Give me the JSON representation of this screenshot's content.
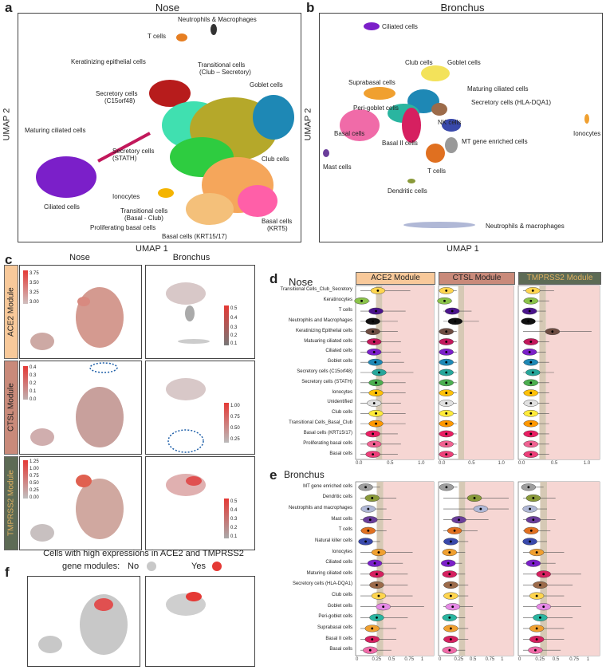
{
  "panels": {
    "a": {
      "letter": "a",
      "title": "Nose",
      "xlabel": "UMAP 1",
      "ylabel": "UMAP 2",
      "labels": [
        "Neutrophils & Macrophages",
        "T cells",
        "Keratinizing epithelial cells",
        "Transitional cells",
        "(Club – Secretory)",
        "Secretory cells",
        "(C15orf48)",
        "Goblet cells",
        "Maturing ciliated cells",
        "Secretory cells",
        "(STATH)",
        "Club cells",
        "Ciliated cells",
        "Ionocytes",
        "Transitional cells",
        "(Basal - Club)",
        "Proliferating basal cells",
        "Basal cells (KRT15/17)",
        "Basal cells",
        "(KRT5)"
      ]
    },
    "b": {
      "letter": "b",
      "title": "Bronchus",
      "xlabel": "UMAP 1",
      "ylabel": "UMAP 2",
      "labels": [
        "Ciliated cells",
        "Club cells",
        "Goblet cells",
        "Suprabasal cells",
        "Maturing ciliated cells",
        "Peri-goblet cells",
        "Secretory cells (HLA-DQA1)",
        "Basal cells",
        "NK cells",
        "Ionocytes",
        "Basal II cells",
        "MT gene enriched cells",
        "Mast cells",
        "T cells",
        "Dendritic cells",
        "Neutrophils & macrophages"
      ]
    },
    "c": {
      "letter": "c",
      "col_nose": "Nose",
      "col_bronchus": "Bronchus",
      "rows": [
        "ACE2 Module",
        "CTSL Module",
        "TMPRSS2 Module"
      ],
      "legend_nose": [
        [
          "3.75",
          "3.50",
          "3.25",
          "3.00"
        ],
        [
          "0.4",
          "0.3",
          "0.2",
          "0.1",
          "0.0"
        ],
        [
          "1.25",
          "1.00",
          "0.75",
          "0.50",
          "0.25",
          "0.00"
        ]
      ],
      "legend_bronchus": [
        [
          "0.5",
          "0.4",
          "0.3",
          "0.2",
          "0.1"
        ],
        [
          "1.00",
          "0.75",
          "0.50",
          "0.25"
        ],
        [
          "0.5",
          "0.4",
          "0.3",
          "0.2",
          "0.1"
        ]
      ]
    },
    "d": {
      "letter": "d",
      "tissue": "Nose",
      "modules": [
        "ACE2 Module",
        "CTSL Module",
        "TMPRSS2 Module"
      ]
    },
    "e": {
      "letter": "e",
      "tissue": "Bronchus"
    },
    "f": {
      "letter": "f",
      "title_line1": "Cells with high expressions in ACE2 and TMPRSS2",
      "title_line2": "gene modules:",
      "no": "No",
      "yes": "Yes"
    }
  },
  "chart_data": [
    {
      "type": "violin",
      "title": "Nose",
      "categories": [
        "Transitional Cells_Club_Secretory",
        "Keratinocytes",
        "T cells",
        "Neutrophils and Macrophages",
        "Keratinizing Epithelial cells",
        "Matuaring ciliated cells",
        "Ciliated cells",
        "Goblet cells",
        "Secretory cells (C15orf48)",
        "Secretory cells (STATH)",
        "Ionocytes",
        "Unidentified",
        "Club cells",
        "Transitional Cells_Basal_Club",
        "Basal cells (KRT15/17)",
        "Proliferating basal cells",
        "Basal cells"
      ],
      "series": [
        {
          "name": "ACE2 Module",
          "medians": [
            0.28,
            0.02,
            0.25,
            0.2,
            0.2,
            0.22,
            0.22,
            0.24,
            0.3,
            0.25,
            0.25,
            0.22,
            0.25,
            0.25,
            0.2,
            0.22,
            0.2
          ]
        },
        {
          "name": "CTSL Module",
          "medians": [
            0.05,
            0.02,
            0.15,
            0.2,
            0.05,
            0.05,
            0.05,
            0.05,
            0.05,
            0.05,
            0.05,
            0.05,
            0.05,
            0.05,
            0.05,
            0.05,
            0.05
          ]
        },
        {
          "name": "TMPRSS2 Module",
          "medians": [
            0.15,
            0.12,
            0.1,
            0.08,
            0.45,
            0.12,
            0.1,
            0.12,
            0.15,
            0.12,
            0.12,
            0.12,
            0.12,
            0.12,
            0.12,
            0.12,
            0.12
          ]
        }
      ],
      "xticks": [
        "0.0",
        "0.5",
        "1.0"
      ]
    },
    {
      "type": "violin",
      "title": "Bronchus",
      "categories": [
        "MT gene enriched cells",
        "Dendritic cells",
        "Neutrophils and macrophages",
        "Mast cells",
        "T cells",
        "Natural killer cells",
        "Ionocytes",
        "Ciliated cells",
        "Maturing ciliated cells",
        "Secretory cells (HLA-DQA1)",
        "Club cells",
        "Goblet cells",
        "Peri-goblet cells",
        "Suprabasal cells",
        "Basal II cells",
        "Basal cells"
      ],
      "series": [
        {
          "medians": [
            0.08,
            0.18,
            0.12,
            0.15,
            0.12,
            0.08,
            0.28,
            0.22,
            0.25,
            0.25,
            0.28,
            0.35,
            0.25,
            0.18,
            0.18,
            0.15
          ]
        },
        {
          "medians": [
            0.05,
            0.5,
            0.6,
            0.25,
            0.18,
            0.12,
            0.1,
            0.08,
            0.1,
            0.12,
            0.12,
            0.15,
            0.1,
            0.12,
            0.12,
            0.1
          ]
        },
        {
          "medians": [
            0.08,
            0.15,
            0.1,
            0.15,
            0.12,
            0.1,
            0.2,
            0.15,
            0.3,
            0.25,
            0.2,
            0.3,
            0.25,
            0.2,
            0.2,
            0.18
          ]
        }
      ],
      "xticks": [
        "0",
        "0.25",
        "0.5",
        "0.75",
        "1"
      ]
    }
  ],
  "colors": {
    "ace2_bg": "#f8c99a",
    "ctsl_bg": "#c98a7a",
    "tmprss2_bg": "#5d6b55",
    "pink_bg": "#f6d6d3",
    "band": "#d6c9b5"
  }
}
